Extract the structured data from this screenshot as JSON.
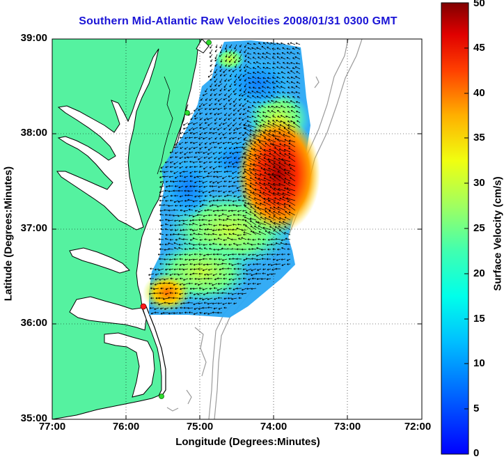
{
  "title": "Southern Mid-Atlantic Raw Velocities 2008/01/31 0300 GMT",
  "axes": {
    "xlabel": "Longitude (Degrees:Minutes)",
    "ylabel": "Latitude (Degrees:Minutes)",
    "xticks": [
      "77:00",
      "76:00",
      "75:00",
      "74:00",
      "73:00",
      "72:00"
    ],
    "yticks": [
      "39:00",
      "38:00",
      "37:00",
      "36:00",
      "35:00"
    ]
  },
  "colorbar": {
    "label": "Surface Velocity (cm/s)",
    "ticks": [
      "50",
      "45",
      "40",
      "35",
      "30",
      "25",
      "20",
      "15",
      "10",
      "5",
      "0"
    ],
    "min": 0,
    "max": 50
  },
  "colors": {
    "land": "#55f2a0",
    "water": "#ffffff",
    "coast": "#000000",
    "bathymetry": "#999999",
    "title": "#1a14d6"
  },
  "sites": [
    {
      "name": "site-north",
      "color": "green"
    },
    {
      "name": "site-mid",
      "color": "green"
    },
    {
      "name": "site-south",
      "color": "red"
    },
    {
      "name": "site-hatteras",
      "color": "green"
    }
  ]
}
